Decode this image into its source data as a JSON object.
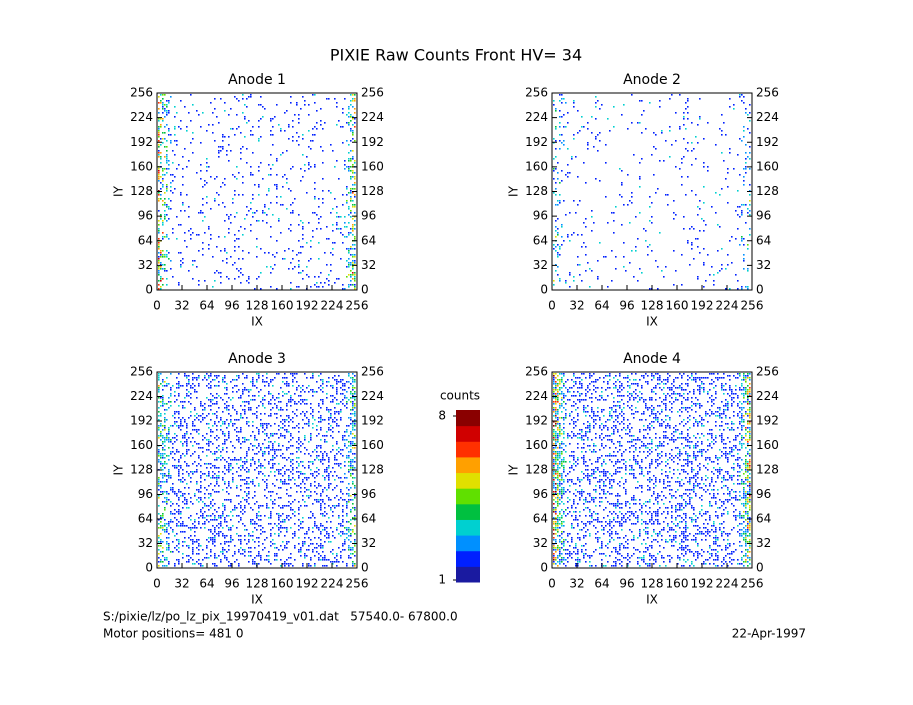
{
  "title": "PIXIE Raw Counts Front HV= 34",
  "chart_data": [
    {
      "type": "heatmap",
      "title": "Anode 1",
      "xlabel": "IX",
      "ylabel": "IY",
      "xlim": [
        0,
        256
      ],
      "ylim": [
        0,
        256
      ],
      "xticks": [
        0,
        32,
        64,
        96,
        128,
        160,
        192,
        224,
        256
      ],
      "yticks": [
        0,
        32,
        64,
        96,
        128,
        160,
        192,
        224,
        256
      ]
    },
    {
      "type": "heatmap",
      "title": "Anode 2",
      "xlabel": "IX",
      "ylabel": "IY",
      "xlim": [
        0,
        256
      ],
      "ylim": [
        0,
        256
      ],
      "xticks": [
        0,
        32,
        64,
        96,
        128,
        160,
        192,
        224,
        256
      ],
      "yticks": [
        0,
        32,
        64,
        96,
        128,
        160,
        192,
        224,
        256
      ]
    },
    {
      "type": "heatmap",
      "title": "Anode 3",
      "xlabel": "IX",
      "ylabel": "IY",
      "xlim": [
        0,
        256
      ],
      "ylim": [
        0,
        256
      ],
      "xticks": [
        0,
        32,
        64,
        96,
        128,
        160,
        192,
        224,
        256
      ],
      "yticks": [
        0,
        32,
        64,
        96,
        128,
        160,
        192,
        224,
        256
      ]
    },
    {
      "type": "heatmap",
      "title": "Anode 4",
      "xlabel": "IX",
      "ylabel": "IY",
      "xlim": [
        0,
        256
      ],
      "ylim": [
        0,
        256
      ],
      "xticks": [
        0,
        32,
        64,
        96,
        128,
        160,
        192,
        224,
        256
      ],
      "yticks": [
        0,
        32,
        64,
        96,
        128,
        160,
        192,
        224,
        256
      ]
    }
  ],
  "colorbar": {
    "label": "counts",
    "lim": [
      1,
      8
    ],
    "ticks": [
      1,
      8
    ],
    "colors": [
      "#1a1aa0",
      "#0020ff",
      "#0090ff",
      "#00d0d0",
      "#00c040",
      "#60e000",
      "#e0e000",
      "#ffa000",
      "#ff3000",
      "#d00000",
      "#8a0000"
    ]
  },
  "footer": {
    "file": "S:/pixie/lz/po_lz_pix_19970419_v01.dat   57540.0- 67800.0",
    "motor": "Motor positions= 481 0",
    "date": "22-Apr-1997"
  }
}
